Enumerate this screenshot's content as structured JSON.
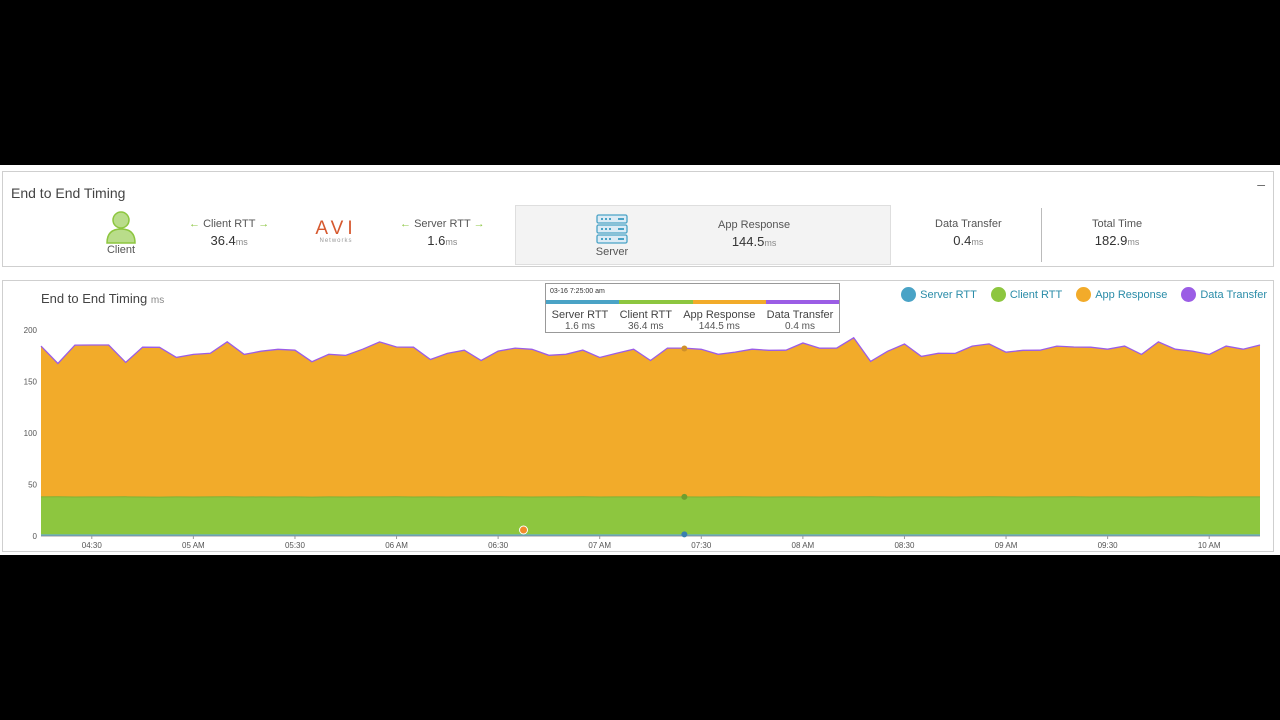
{
  "summary": {
    "title": "End to End Timing",
    "minimize_label": "–",
    "client_label": "Client",
    "client_rtt": {
      "label": "Client RTT",
      "value": "36.4",
      "unit": "ms"
    },
    "avi_logo": "AVI",
    "avi_sub": "Networks",
    "server_rtt": {
      "label": "Server RTT",
      "value": "1.6",
      "unit": "ms"
    },
    "server_label": "Server",
    "app_response": {
      "label": "App Response",
      "value": "144.5",
      "unit": "ms"
    },
    "data_transfer": {
      "label": "Data Transfer",
      "value": "0.4",
      "unit": "ms"
    },
    "total_time": {
      "label": "Total Time",
      "value": "182.9",
      "unit": "ms"
    },
    "arrow_left": "←",
    "arrow_right": "→"
  },
  "chart_panel": {
    "title": "End to End Timing",
    "unit": "ms"
  },
  "legend": [
    {
      "name": "Server RTT",
      "color": "#4aa3c6"
    },
    {
      "name": "Client RTT",
      "color": "#8dc63f"
    },
    {
      "name": "App Response",
      "color": "#f2ab2a"
    },
    {
      "name": "Data Transfer",
      "color": "#9b5de5"
    }
  ],
  "tooltip": {
    "time": "03-16 7:25:00 am",
    "items": [
      {
        "label": "Server RTT",
        "value": "1.6 ms",
        "color": "#4aa3c6"
      },
      {
        "label": "Client RTT",
        "value": "36.4 ms",
        "color": "#8dc63f"
      },
      {
        "label": "App Response",
        "value": "144.5 ms",
        "color": "#f2ab2a"
      },
      {
        "label": "Data Transfer",
        "value": "0.4 ms",
        "color": "#9b5de5"
      }
    ]
  },
  "chart_data": {
    "type": "area",
    "stacked": true,
    "title": "End to End Timing",
    "ylabel": "ms",
    "ylim": [
      0,
      200
    ],
    "yticks": [
      0,
      50,
      100,
      150,
      200
    ],
    "xlim": [
      "04:15",
      "10:15"
    ],
    "xticks": [
      "04:30",
      "05 AM",
      "05:30",
      "06 AM",
      "06:30",
      "07 AM",
      "07:30",
      "08 AM",
      "08:30",
      "09 AM",
      "09:30",
      "10 AM"
    ],
    "x": [
      "04:15",
      "04:20",
      "04:25",
      "04:30",
      "04:35",
      "04:40",
      "04:45",
      "04:50",
      "04:55",
      "05:00",
      "05:05",
      "05:10",
      "05:15",
      "05:20",
      "05:25",
      "05:30",
      "05:35",
      "05:40",
      "05:45",
      "05:50",
      "05:55",
      "06:00",
      "06:05",
      "06:10",
      "06:15",
      "06:20",
      "06:25",
      "06:30",
      "06:35",
      "06:40",
      "06:45",
      "06:50",
      "06:55",
      "07:00",
      "07:05",
      "07:10",
      "07:15",
      "07:20",
      "07:25",
      "07:30",
      "07:35",
      "07:40",
      "07:45",
      "07:50",
      "07:55",
      "08:00",
      "08:05",
      "08:10",
      "08:15",
      "08:20",
      "08:25",
      "08:30",
      "08:35",
      "08:40",
      "08:45",
      "08:50",
      "08:55",
      "09:00",
      "09:05",
      "09:10",
      "09:15",
      "09:20",
      "09:25",
      "09:30",
      "09:35",
      "09:40",
      "09:45",
      "09:50",
      "09:55",
      "10:00",
      "10:05",
      "10:10",
      "10:15"
    ],
    "series": [
      {
        "name": "Server RTT",
        "color": "#4aa3c6",
        "values": [
          1.6,
          1.6,
          1.6,
          1.6,
          1.6,
          1.6,
          1.6,
          1.6,
          1.6,
          1.6,
          1.6,
          1.6,
          1.6,
          1.6,
          1.6,
          1.6,
          1.6,
          1.6,
          1.6,
          1.6,
          1.6,
          1.6,
          1.6,
          1.6,
          1.6,
          1.6,
          1.6,
          1.6,
          1.6,
          1.6,
          1.6,
          1.6,
          1.6,
          1.6,
          1.6,
          1.6,
          1.6,
          1.6,
          1.6,
          1.6,
          1.6,
          1.6,
          1.6,
          1.6,
          1.6,
          1.6,
          1.6,
          1.6,
          1.6,
          1.6,
          1.6,
          1.6,
          1.6,
          1.6,
          1.6,
          1.6,
          1.6,
          1.6,
          1.6,
          1.6,
          1.6,
          1.6,
          1.6,
          1.6,
          1.6,
          1.6,
          1.6,
          1.6,
          1.6,
          1.6,
          1.6,
          1.6,
          1.6
        ]
      },
      {
        "name": "Client RTT",
        "color": "#8dc63f",
        "values": [
          36.4,
          36.5,
          36.3,
          36.4,
          36.4,
          36.5,
          36.3,
          36.2,
          36.4,
          36.3,
          36.4,
          36.5,
          36.3,
          36.4,
          36.3,
          36.4,
          36.2,
          36.4,
          36.3,
          36.4,
          36.4,
          36.5,
          36.3,
          36.4,
          36.3,
          36.4,
          36.4,
          36.5,
          36.4,
          36.3,
          36.4,
          36.4,
          36.5,
          36.3,
          36.4,
          36.4,
          36.4,
          36.4,
          36.4,
          36.3,
          36.4,
          36.5,
          36.4,
          36.3,
          36.4,
          36.4,
          36.3,
          36.4,
          36.4,
          36.5,
          36.3,
          36.4,
          36.4,
          36.4,
          36.3,
          36.4,
          36.5,
          36.4,
          36.3,
          36.4,
          36.4,
          36.5,
          36.3,
          36.4,
          36.4,
          36.3,
          36.4,
          36.4,
          36.5,
          36.3,
          36.4,
          36.4,
          36.4
        ]
      },
      {
        "name": "App Response",
        "color": "#f2ab2a",
        "values": [
          146,
          129,
          147,
          147,
          147,
          130,
          145,
          145,
          135,
          138,
          139,
          150,
          138,
          141,
          143,
          142,
          131,
          138,
          137,
          143,
          150,
          145,
          145,
          133,
          139,
          142,
          132,
          141,
          144,
          143,
          137,
          138,
          142,
          135,
          139,
          143,
          132,
          144,
          144,
          143,
          138,
          140,
          143,
          142,
          142,
          149,
          144,
          144,
          154,
          131,
          141,
          148,
          136,
          139,
          139,
          146,
          148,
          140,
          142,
          142,
          146,
          145,
          145,
          143,
          146,
          138,
          150,
          143,
          141,
          138,
          146,
          143,
          147
        ]
      },
      {
        "name": "Data Transfer",
        "color": "#9b5de5",
        "values": [
          0.4,
          0.4,
          0.4,
          0.4,
          0.4,
          0.4,
          0.4,
          0.4,
          0.4,
          0.4,
          0.4,
          0.4,
          0.4,
          0.4,
          0.4,
          0.4,
          0.4,
          0.4,
          0.4,
          0.4,
          0.4,
          0.4,
          0.4,
          0.4,
          0.4,
          0.4,
          0.4,
          0.4,
          0.4,
          0.4,
          0.4,
          0.4,
          0.4,
          0.4,
          0.4,
          0.4,
          0.4,
          0.4,
          0.4,
          0.4,
          0.4,
          0.4,
          0.4,
          0.4,
          0.4,
          0.4,
          0.4,
          0.4,
          0.4,
          0.4,
          0.4,
          0.4,
          0.4,
          0.4,
          0.4,
          0.4,
          0.4,
          0.4,
          0.4,
          0.4,
          0.4,
          0.4,
          0.4,
          0.4,
          0.4,
          0.4,
          0.4,
          0.4,
          0.4,
          0.4,
          0.4,
          0.4,
          0.4
        ]
      }
    ],
    "hover_index": 38,
    "event_marker_index": 28
  }
}
